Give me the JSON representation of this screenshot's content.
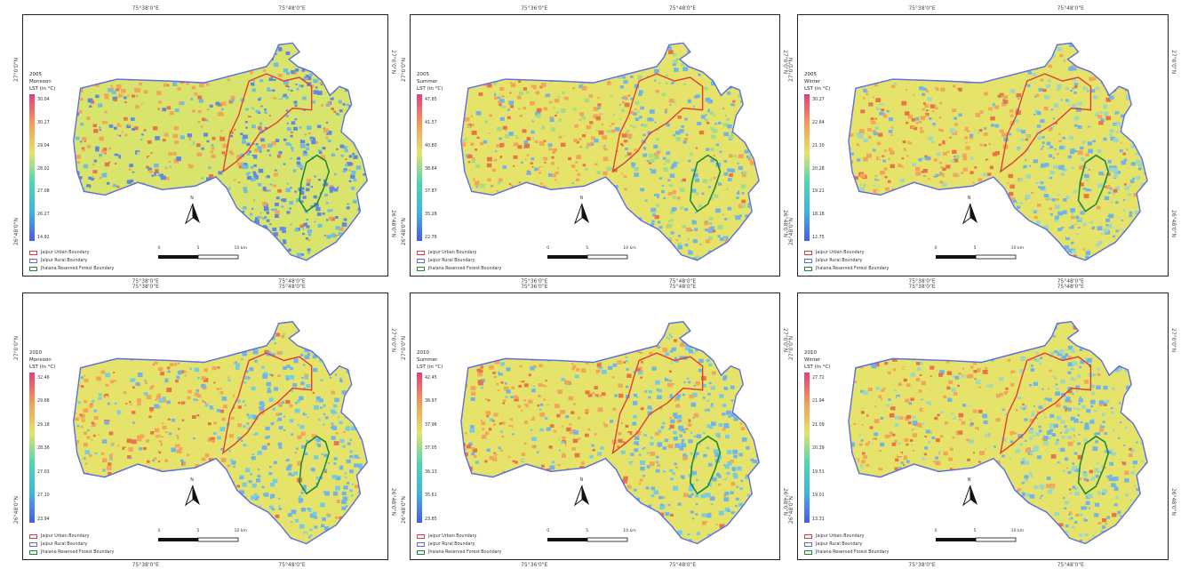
{
  "axis": {
    "lon_left": "75°38'0\"E",
    "lon_right": "75°48'0\"E",
    "lon_center": "75°36'0\"E",
    "lat_top": "27°0'0\"N",
    "lat_bottom": "26°48'0\"N"
  },
  "panels": [
    {
      "year": "2005",
      "season": "Monsoon",
      "unit": "LST (in °C)",
      "ticks": [
        "30.04",
        "30.27",
        "29.04",
        "28.02",
        "27.08",
        "26.27",
        "14.92"
      ],
      "palette": [
        "#5d88e3",
        "#6fbde0",
        "#d8e46b",
        "#f2a55b",
        "#e9744a"
      ]
    },
    {
      "year": "2005",
      "season": "Summer",
      "unit": "LST (in °C)",
      "ticks": [
        "47.85",
        "41.57",
        "40.80",
        "38.64",
        "37.87",
        "35.28",
        "22.76"
      ],
      "palette": [
        "#6fb4ea",
        "#a3dc8b",
        "#e6e36a",
        "#f2a55b",
        "#e9744a"
      ]
    },
    {
      "year": "2005",
      "season": "Winter",
      "unit": "LST (in °C)",
      "ticks": [
        "30.27",
        "22.64",
        "21.30",
        "20.28",
        "19.21",
        "18.18",
        "12.75"
      ],
      "palette": [
        "#6fb4ea",
        "#9cd8c4",
        "#e6e36a",
        "#f2a55b",
        "#e9744a"
      ]
    },
    {
      "year": "2010",
      "season": "Monsoon",
      "unit": "LST (in °C)",
      "ticks": [
        "32.46",
        "29.68",
        "29.18",
        "28.36",
        "27.03",
        "27.10",
        "23.94"
      ],
      "palette": [
        "#6fb4ea",
        "#74cde2",
        "#e6e36a",
        "#f2a55b",
        "#e9744a"
      ]
    },
    {
      "year": "2010",
      "season": "Summer",
      "unit": "LST (in °C)",
      "ticks": [
        "42.45",
        "38.97",
        "37.96",
        "37.05",
        "36.13",
        "35.61",
        "23.85"
      ],
      "palette": [
        "#6fb4ea",
        "#74cde2",
        "#e6e36a",
        "#f2a55b",
        "#e9744a"
      ]
    },
    {
      "year": "2010",
      "season": "Winter",
      "unit": "LST (in °C)",
      "ticks": [
        "27.72",
        "21.94",
        "21.09",
        "20.39",
        "19.51",
        "19.01",
        "13.31"
      ],
      "palette": [
        "#6fb4ea",
        "#9cd8c4",
        "#e6e36a",
        "#f2a55b",
        "#e9744a"
      ]
    }
  ],
  "legend": {
    "urban": "Jaipur Urban Boundary",
    "rural": "Jaipur Rural Boundary",
    "forest": "Jhalana Reserved Forest Boundary"
  },
  "scale": {
    "zero": "0",
    "mid": "5",
    "end": "10 km"
  },
  "north_label": "N",
  "colors": {
    "urban_boundary": "#e23b3b",
    "rural_boundary": "#5a6ee0",
    "forest_boundary": "#1d8a3a",
    "ramp": [
      "#e0407f",
      "#f29b5a",
      "#e6e36a",
      "#4fd6b0",
      "#3fb5e0",
      "#4a5be0"
    ]
  }
}
